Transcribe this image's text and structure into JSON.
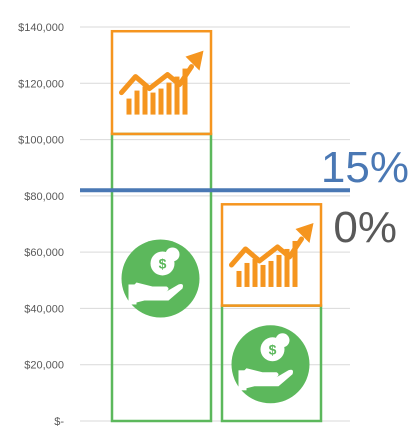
{
  "chart_data": {
    "type": "bar",
    "y_ticks": [
      "$140,000",
      "$120,000",
      "$100,000",
      "$80,000",
      "$60,000",
      "$40,000",
      "$20,000",
      "$-"
    ],
    "y_tick_values": [
      140000,
      120000,
      100000,
      80000,
      60000,
      40000,
      20000,
      0
    ],
    "ylim": [
      0,
      140000
    ],
    "grid": true,
    "bars": [
      {
        "base_value": 102000,
        "growth_value": 36500
      },
      {
        "base_value": 41000,
        "growth_value": 36000
      }
    ],
    "reference_line": {
      "value": 82000,
      "color": "#4a78b4"
    },
    "percent_labels": [
      {
        "text": "15%",
        "color": "#4a78b4"
      },
      {
        "text": "0%",
        "color": "#595959"
      }
    ],
    "colors": {
      "base_outline": "#5cb85c",
      "growth_outline": "#f5951f",
      "icon_orange": "#f5951f",
      "money_icon_green": "#5cb85c",
      "grid": "#d9d9d9",
      "tick_text": "#595959"
    },
    "icons": {
      "growth": "growth-bar-chart-icon",
      "money": "money-hand-icon"
    }
  }
}
